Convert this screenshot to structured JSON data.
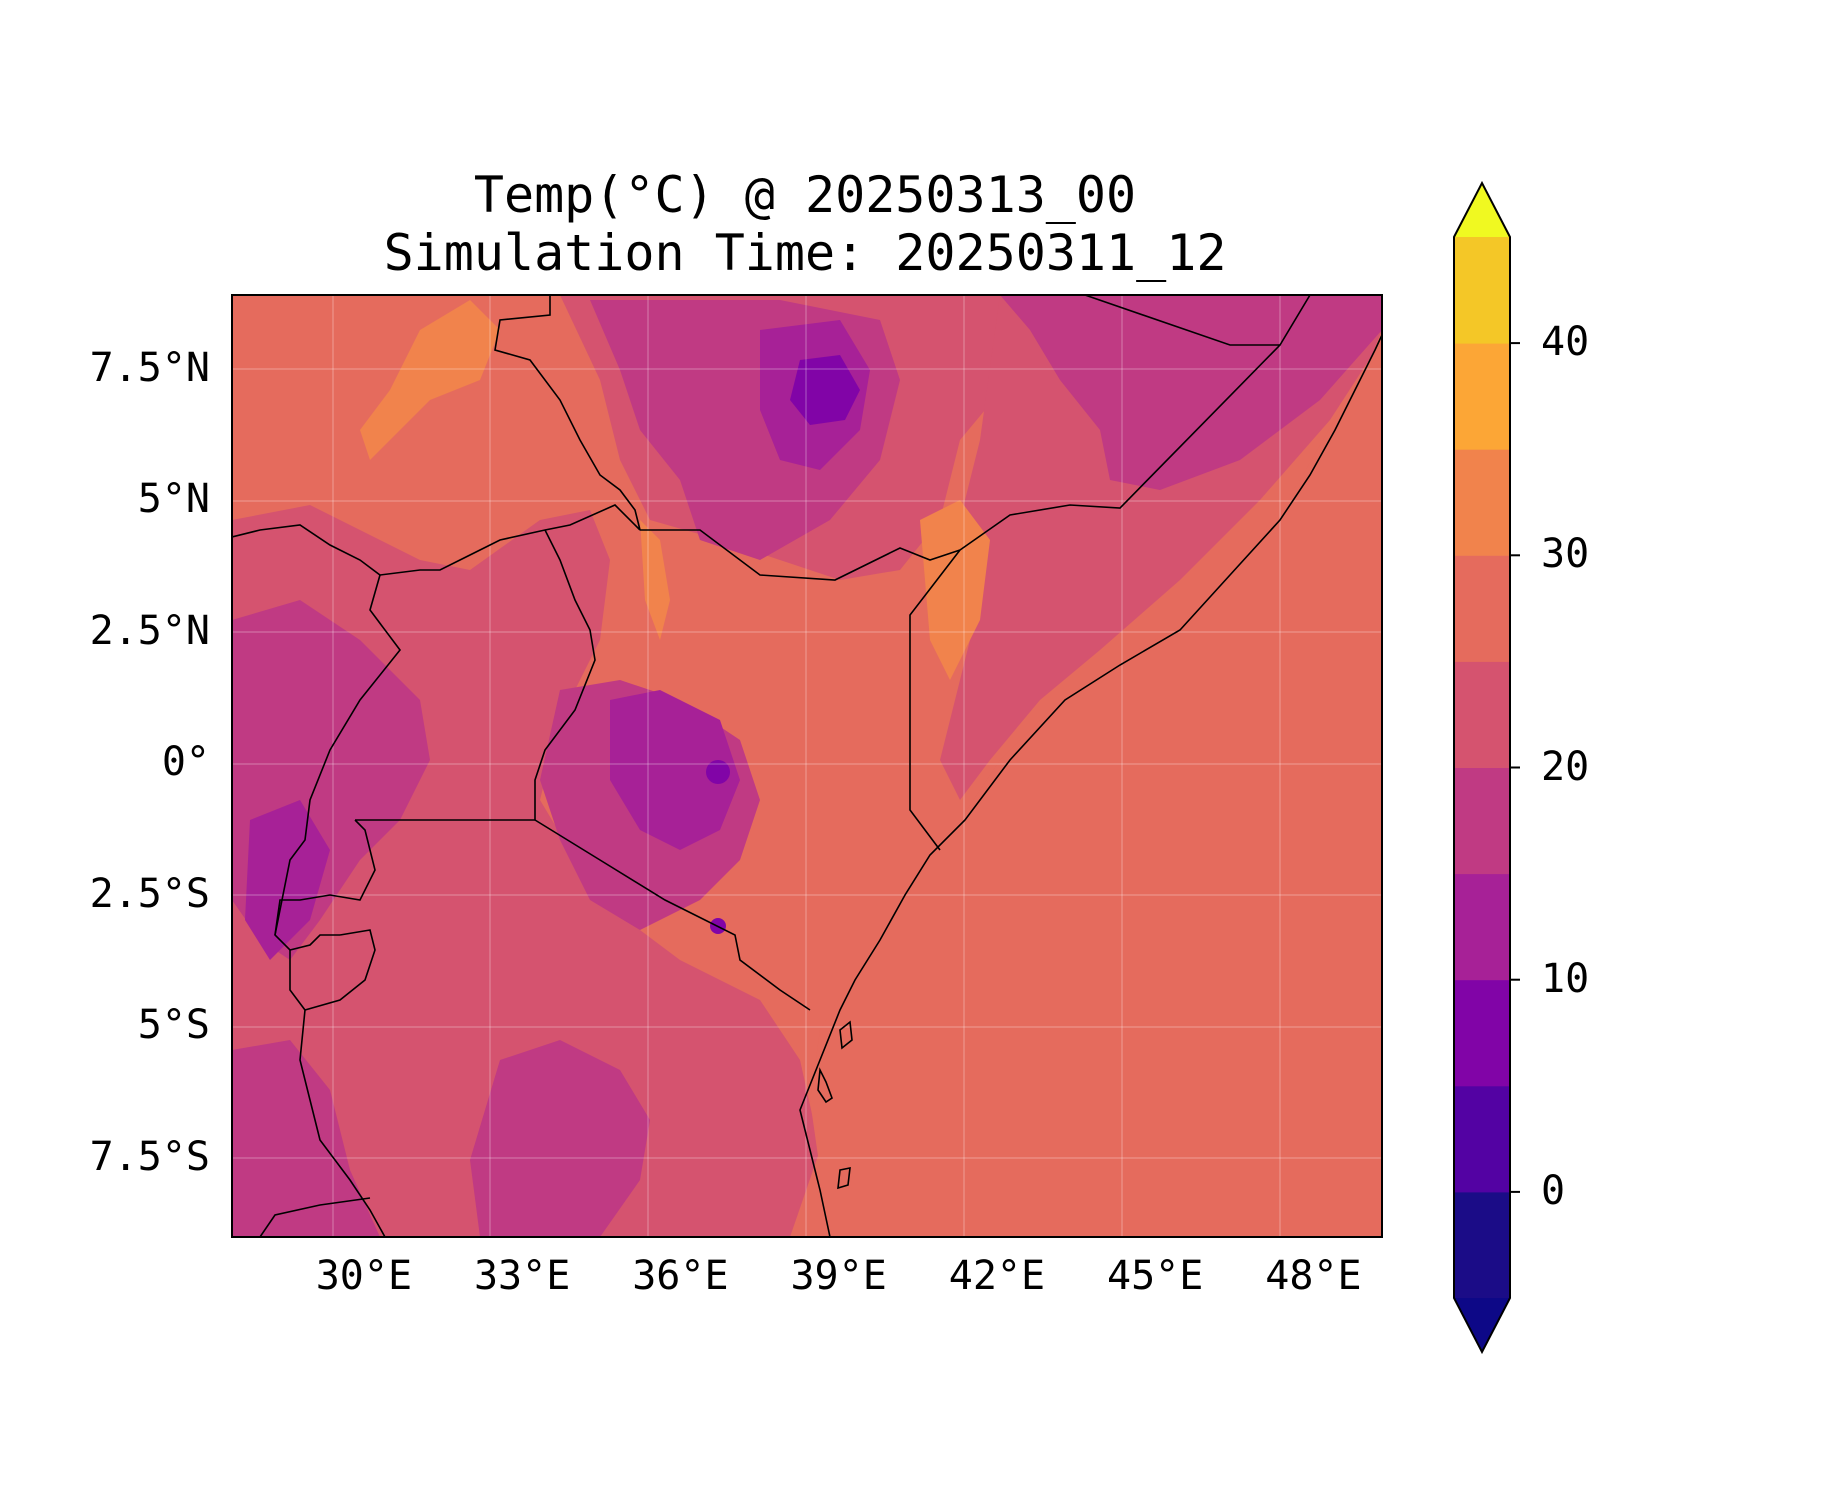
{
  "title": {
    "line1": "Temp(°C) @ 20250313_00",
    "line2": "Simulation Time: 20250311_12"
  },
  "map": {
    "type": "filled-contour",
    "variable": "Temp(°C)",
    "lon_range": [
      27.5,
      49.3
    ],
    "lat_range": [
      -9.0,
      8.9
    ],
    "x_ticks": [
      {
        "value": 30,
        "label": "30°E"
      },
      {
        "value": 33,
        "label": "33°E"
      },
      {
        "value": 36,
        "label": "36°E"
      },
      {
        "value": 39,
        "label": "39°E"
      },
      {
        "value": 42,
        "label": "42°E"
      },
      {
        "value": 45,
        "label": "45°E"
      },
      {
        "value": 48,
        "label": "48°E"
      }
    ],
    "y_ticks": [
      {
        "value": 7.5,
        "label": "7.5°N"
      },
      {
        "value": 5,
        "label": "5°N"
      },
      {
        "value": 2.5,
        "label": "2.5°N"
      },
      {
        "value": 0,
        "label": "0°"
      },
      {
        "value": -2.5,
        "label": "2.5°S"
      },
      {
        "value": -5,
        "label": "5°S"
      },
      {
        "value": -7.5,
        "label": "7.5°S"
      }
    ],
    "grid": true
  },
  "colorbar": {
    "levels": [
      -5,
      0,
      5,
      10,
      15,
      20,
      25,
      30,
      35,
      40,
      45
    ],
    "colors": [
      "#1b0c87",
      "#5302a3",
      "#8104a7",
      "#a72197",
      "#c03a83",
      "#d5536f",
      "#e56b5d",
      "#f1834c",
      "#fca636",
      "#f4c727"
    ],
    "under_color": "#0d0887",
    "over_color": "#f0f921",
    "extend": "both",
    "tick_labels": [
      {
        "value": 0,
        "label": "0"
      },
      {
        "value": 10,
        "label": "10"
      },
      {
        "value": 20,
        "label": "20"
      },
      {
        "value": 30,
        "label": "30"
      },
      {
        "value": 40,
        "label": "40"
      }
    ]
  }
}
